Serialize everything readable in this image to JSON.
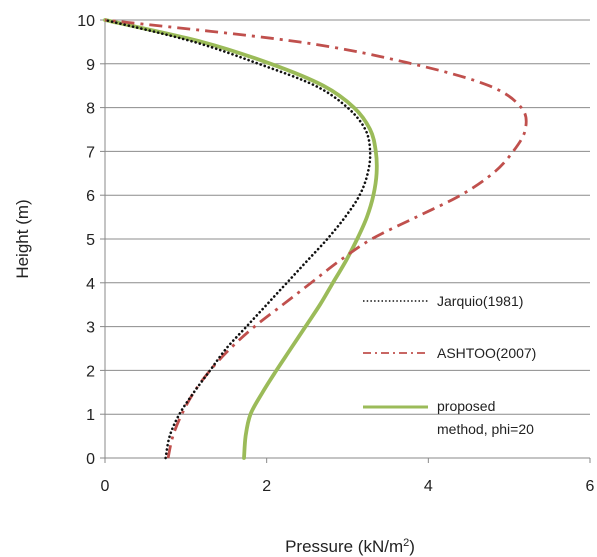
{
  "chart_data": {
    "type": "line",
    "title": "",
    "xlabel": "Pressure (kN/m",
    "xlabel_sup": "2",
    "xlabel_end": ")",
    "ylabel": "Height (m)",
    "xlim": [
      0,
      6
    ],
    "ylim": [
      0,
      10
    ],
    "xticks": [
      0,
      2,
      4,
      6
    ],
    "yticks": [
      0,
      1,
      2,
      3,
      4,
      5,
      6,
      7,
      8,
      9,
      10
    ],
    "grid": "horizontal",
    "legend_position": "bottom-right",
    "series": [
      {
        "name": "Jarquio(1981)",
        "style": "dotted",
        "color": "#111111",
        "points": [
          [
            0.75,
            0
          ],
          [
            0.8,
            0.5
          ],
          [
            0.92,
            1
          ],
          [
            1.1,
            1.5
          ],
          [
            1.3,
            2
          ],
          [
            1.5,
            2.5
          ],
          [
            1.75,
            3
          ],
          [
            2.0,
            3.5
          ],
          [
            2.25,
            4
          ],
          [
            2.5,
            4.5
          ],
          [
            2.75,
            5
          ],
          [
            2.97,
            5.5
          ],
          [
            3.15,
            6
          ],
          [
            3.25,
            6.5
          ],
          [
            3.28,
            7
          ],
          [
            3.22,
            7.5
          ],
          [
            3.0,
            8
          ],
          [
            2.6,
            8.5
          ],
          [
            1.9,
            9
          ],
          [
            1.1,
            9.5
          ],
          [
            0,
            10
          ]
        ]
      },
      {
        "name": "ASHTOO(2007)",
        "style": "dash-dot",
        "color": "#c0504d",
        "points": [
          [
            0.78,
            0
          ],
          [
            0.84,
            0.5
          ],
          [
            0.95,
            1
          ],
          [
            1.1,
            1.5
          ],
          [
            1.3,
            2
          ],
          [
            1.55,
            2.5
          ],
          [
            1.85,
            3
          ],
          [
            2.2,
            3.5
          ],
          [
            2.55,
            4
          ],
          [
            2.9,
            4.5
          ],
          [
            3.3,
            5
          ],
          [
            3.85,
            5.5
          ],
          [
            4.4,
            6
          ],
          [
            4.8,
            6.5
          ],
          [
            5.05,
            7
          ],
          [
            5.2,
            7.5
          ],
          [
            5.15,
            8
          ],
          [
            4.75,
            8.5
          ],
          [
            3.8,
            9
          ],
          [
            2.4,
            9.5
          ],
          [
            0,
            10
          ]
        ]
      },
      {
        "name": "proposed method, phi=20",
        "style": "solid",
        "color": "#9bbb59",
        "points": [
          [
            1.72,
            0
          ],
          [
            1.74,
            0.5
          ],
          [
            1.8,
            1
          ],
          [
            1.95,
            1.5
          ],
          [
            2.12,
            2
          ],
          [
            2.3,
            2.5
          ],
          [
            2.48,
            3
          ],
          [
            2.66,
            3.5
          ],
          [
            2.82,
            4
          ],
          [
            2.98,
            4.5
          ],
          [
            3.12,
            5
          ],
          [
            3.24,
            5.5
          ],
          [
            3.32,
            6
          ],
          [
            3.36,
            6.5
          ],
          [
            3.35,
            7
          ],
          [
            3.28,
            7.5
          ],
          [
            3.08,
            8
          ],
          [
            2.7,
            8.5
          ],
          [
            2.05,
            9
          ],
          [
            1.2,
            9.5
          ],
          [
            0,
            10
          ]
        ]
      }
    ],
    "legend": [
      {
        "label": "Jarquio(1981)"
      },
      {
        "label": "ASHTOO(2007)"
      },
      {
        "label": "proposed",
        "label2": "method, phi=20"
      }
    ]
  }
}
